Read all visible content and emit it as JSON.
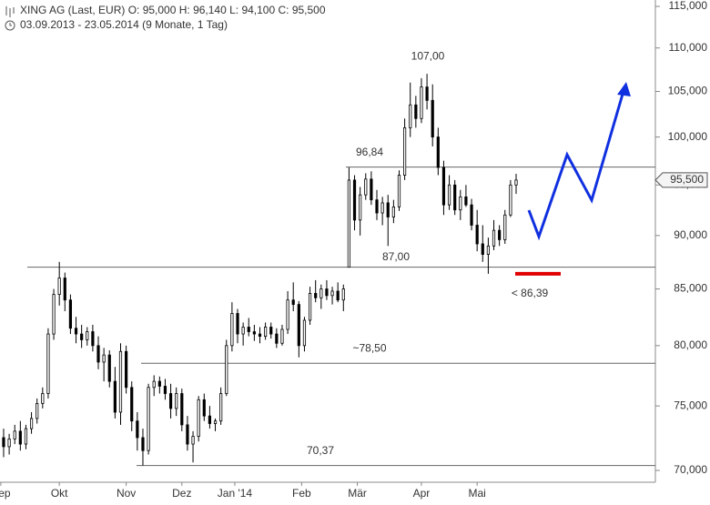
{
  "chart_data": {
    "type": "candlestick",
    "title": "XING AG (Last, EUR)  O: 95,000  H: 96,140  L: 94,100  C: 95,500",
    "subtitle": "03.09.2013 - 23.05.2014 (9 Monate, 1 Tag)",
    "log_scale": true,
    "ylim": [
      69.12,
      115.79
    ],
    "yticks": [
      {
        "value": 70,
        "label": "70,000"
      },
      {
        "value": 75,
        "label": "75,000"
      },
      {
        "value": 80,
        "label": "80,000"
      },
      {
        "value": 85,
        "label": "85,000"
      },
      {
        "value": 90,
        "label": "90,000"
      },
      {
        "value": 95,
        "label": "95,000"
      },
      {
        "value": 100,
        "label": "100,000"
      },
      {
        "value": 105,
        "label": "105,000"
      },
      {
        "value": 110,
        "label": "110,000"
      },
      {
        "value": 115,
        "label": "115,000"
      }
    ],
    "xlim": [
      -1.3,
      234
    ],
    "xticks": [
      {
        "value": -1,
        "label": "Sep"
      },
      {
        "value": 20,
        "label": "Okt"
      },
      {
        "value": 44,
        "label": "Nov"
      },
      {
        "value": 64,
        "label": "Dez"
      },
      {
        "value": 83,
        "label": "Jan '14"
      },
      {
        "value": 107,
        "label": "Feb"
      },
      {
        "value": 127,
        "label": "Mär"
      },
      {
        "value": 150,
        "label": "Apr"
      },
      {
        "value": 170,
        "label": "Mai"
      }
    ],
    "x": [
      0,
      2,
      4,
      6,
      8,
      10,
      12,
      14,
      16,
      18,
      20,
      22,
      24,
      26,
      28,
      30,
      32,
      34,
      36,
      38,
      40,
      42,
      44,
      46,
      48,
      50,
      52,
      54,
      56,
      58,
      60,
      62,
      64,
      66,
      68,
      70,
      72,
      74,
      76,
      78,
      80,
      82,
      84,
      86,
      88,
      90,
      92,
      94,
      96,
      98,
      100,
      102,
      104,
      106,
      108,
      110,
      112,
      114,
      116,
      118,
      120,
      122,
      124,
      126,
      128,
      130,
      132,
      134,
      136,
      138,
      140,
      142,
      144,
      146,
      148,
      150,
      152,
      154,
      156,
      158,
      160,
      162,
      164,
      166,
      168,
      170,
      172,
      174,
      176,
      178,
      180,
      182,
      184
    ],
    "open": [
      72.5,
      71.8,
      72.4,
      73.0,
      72.0,
      73.2,
      74.0,
      75.2,
      76.0,
      81.0,
      84.5,
      86.0,
      84.0,
      81.5,
      81.0,
      80.5,
      81.2,
      80.0,
      78.6,
      79.2,
      77.0,
      74.5,
      79.5,
      76.5,
      73.8,
      72.5,
      71.5,
      76.5,
      77.0,
      76.6,
      76.0,
      74.8,
      76.0,
      73.5,
      72.0,
      72.6,
      75.5,
      74.2,
      73.6,
      73.8,
      76.0,
      80.0,
      82.8,
      81.0,
      81.6,
      81.2,
      81.0,
      80.8,
      81.6,
      81.0,
      80.2,
      81.4,
      84.0,
      83.6,
      80.0,
      82.2,
      84.6,
      84.2,
      85.0,
      84.4,
      84.8,
      84.0,
      87.0,
      95.5,
      91.5,
      94.0,
      95.6,
      93.5,
      92.2,
      93.2,
      91.8,
      92.8,
      96.0,
      101.0,
      103.5,
      102.0,
      105.5,
      104.0,
      100.0,
      96.8,
      93.0,
      95.0,
      92.5,
      93.8,
      93.0,
      91.0,
      89.2,
      88.2,
      89.0,
      90.5,
      89.6,
      92.0,
      95.0
    ],
    "high": [
      73.2,
      72.8,
      73.5,
      73.8,
      73.5,
      74.5,
      75.6,
      76.5,
      81.5,
      85.0,
      87.5,
      86.5,
      84.5,
      82.5,
      81.8,
      81.6,
      81.8,
      80.8,
      79.8,
      79.6,
      78.2,
      80.2,
      80.0,
      77.0,
      74.5,
      73.2,
      76.8,
      77.5,
      77.4,
      77.2,
      76.8,
      76.5,
      76.4,
      74.2,
      73.0,
      75.8,
      76.0,
      75.0,
      74.0,
      76.5,
      80.5,
      83.8,
      83.2,
      82.0,
      82.4,
      81.8,
      81.6,
      82.0,
      82.0,
      81.5,
      81.8,
      84.8,
      85.6,
      83.9,
      82.5,
      85.2,
      85.8,
      85.4,
      85.8,
      85.2,
      85.6,
      85.4,
      96.8,
      96.0,
      94.8,
      96.2,
      96.4,
      94.5,
      93.8,
      94.0,
      93.5,
      96.5,
      102.0,
      106.0,
      104.5,
      106.5,
      107.0,
      105.8,
      101.0,
      97.5,
      96.0,
      95.5,
      94.5,
      95.0,
      93.6,
      92.5,
      91.0,
      89.8,
      91.5,
      91.0,
      92.5,
      95.5,
      96.14
    ],
    "low": [
      71.0,
      71.2,
      72.0,
      71.5,
      71.6,
      72.8,
      73.6,
      74.8,
      75.6,
      80.5,
      83.5,
      83.0,
      81.0,
      80.2,
      79.8,
      80.0,
      79.5,
      78.0,
      77.0,
      76.5,
      74.0,
      73.5,
      76.0,
      73.0,
      71.5,
      70.37,
      71.2,
      75.8,
      76.0,
      75.5,
      74.0,
      74.2,
      73.0,
      71.5,
      70.6,
      72.2,
      73.8,
      73.2,
      73.0,
      73.5,
      75.8,
      79.5,
      80.2,
      80.0,
      80.8,
      80.4,
      80.2,
      80.5,
      80.6,
      79.8,
      80.0,
      81.0,
      83.0,
      79.0,
      79.5,
      81.8,
      83.8,
      83.2,
      84.0,
      83.6,
      83.8,
      83.0,
      87.0,
      90.5,
      90.0,
      93.5,
      93.0,
      91.5,
      91.0,
      89.0,
      91.2,
      92.4,
      95.5,
      100.0,
      101.0,
      101.5,
      103.0,
      99.0,
      96.0,
      92.0,
      92.5,
      92.0,
      91.5,
      92.8,
      90.5,
      88.5,
      87.5,
      86.39,
      88.6,
      89.0,
      89.2,
      91.8,
      94.1
    ],
    "close": [
      71.8,
      72.4,
      73.0,
      72.0,
      73.2,
      74.0,
      75.2,
      76.0,
      81.0,
      84.5,
      86.0,
      84.0,
      81.5,
      81.0,
      80.5,
      81.2,
      80.0,
      78.6,
      79.2,
      77.0,
      74.5,
      79.5,
      76.5,
      73.8,
      72.5,
      71.5,
      76.5,
      77.0,
      76.6,
      76.0,
      74.8,
      76.0,
      73.5,
      72.0,
      72.6,
      75.5,
      74.2,
      73.6,
      73.8,
      76.0,
      80.0,
      82.8,
      81.0,
      81.6,
      81.2,
      81.0,
      80.8,
      81.6,
      81.0,
      80.2,
      81.4,
      84.0,
      83.6,
      80.0,
      82.2,
      84.6,
      84.2,
      85.0,
      84.4,
      84.8,
      84.0,
      85.0,
      95.5,
      91.5,
      94.0,
      95.6,
      93.5,
      92.2,
      93.2,
      91.8,
      92.8,
      96.0,
      101.0,
      103.5,
      102.0,
      105.5,
      104.0,
      100.0,
      96.8,
      93.0,
      95.0,
      92.5,
      93.8,
      93.0,
      91.0,
      89.2,
      88.2,
      89.0,
      90.5,
      89.6,
      92.0,
      95.0,
      95.5
    ],
    "levels": [
      {
        "value": 96.84,
        "label": "96,84"
      },
      {
        "value": 87.0,
        "label": "87,00"
      },
      {
        "value": 78.5,
        "label": "~78,50"
      },
      {
        "value": 70.37,
        "label": "70,37"
      }
    ],
    "annotations": [
      {
        "value": 107.0,
        "label": "107,00"
      },
      {
        "value": 86.39,
        "label": "< 86,39",
        "color": "#e00000"
      }
    ],
    "last_price": {
      "value": 95.5,
      "label": "95,500"
    },
    "forecast_color": "#1030e0"
  }
}
